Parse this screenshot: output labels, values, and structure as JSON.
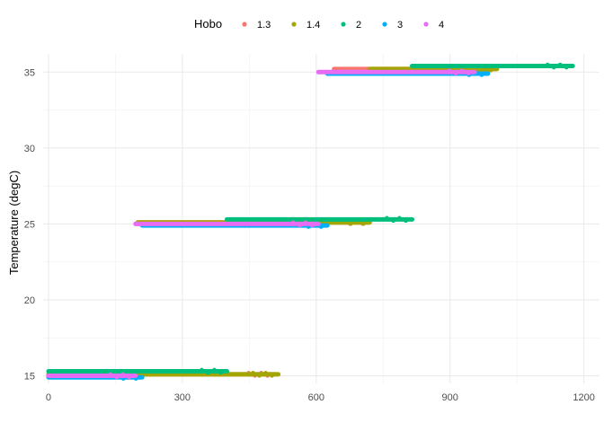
{
  "chart_data": {
    "type": "scatter",
    "title": "",
    "xlabel": "",
    "ylabel": "Temperature (degC)",
    "xlim": [
      -12,
      1235
    ],
    "ylim": [
      14.5,
      36.2
    ],
    "x_ticks": [
      0,
      300,
      600,
      900,
      1200
    ],
    "y_ticks": [
      15,
      20,
      25,
      30,
      35
    ],
    "grid": true,
    "legend": {
      "title": "Hobo",
      "position": "top"
    },
    "series": [
      {
        "name": "1.3",
        "color": "#F8766D",
        "segments": [
          {
            "x_start": 0,
            "x_end": 505,
            "y": 15.1
          },
          {
            "x_start": 200,
            "x_end": 718,
            "y": 25.1
          },
          {
            "x_start": 640,
            "x_end": 1000,
            "y": 35.2
          }
        ]
      },
      {
        "name": "1.4",
        "color": "#A3A500",
        "segments": [
          {
            "x_start": 0,
            "x_end": 515,
            "y": 15.1
          },
          {
            "x_start": 200,
            "x_end": 720,
            "y": 25.1
          },
          {
            "x_start": 720,
            "x_end": 1005,
            "y": 35.2
          }
        ]
      },
      {
        "name": "2",
        "color": "#00BF7D",
        "segments": [
          {
            "x_start": 0,
            "x_end": 400,
            "y": 15.3
          },
          {
            "x_start": 400,
            "x_end": 815,
            "y": 25.3
          },
          {
            "x_start": 815,
            "x_end": 1175,
            "y": 35.4
          }
        ]
      },
      {
        "name": "3",
        "color": "#00B0F6",
        "segments": [
          {
            "x_start": 0,
            "x_end": 210,
            "y": 14.9
          },
          {
            "x_start": 210,
            "x_end": 625,
            "y": 24.9
          },
          {
            "x_start": 625,
            "x_end": 985,
            "y": 34.9
          }
        ]
      },
      {
        "name": "4",
        "color": "#E76BF3",
        "segments": [
          {
            "x_start": 0,
            "x_end": 195,
            "y": 15.0
          },
          {
            "x_start": 195,
            "x_end": 605,
            "y": 25.0
          },
          {
            "x_start": 605,
            "x_end": 955,
            "y": 35.0
          }
        ]
      }
    ]
  }
}
